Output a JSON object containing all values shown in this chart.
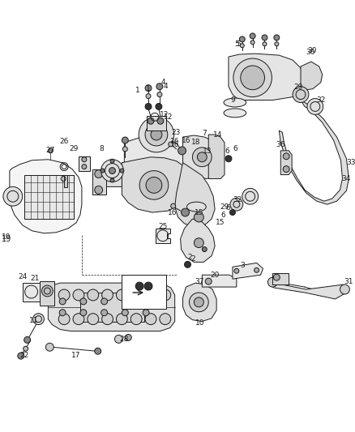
{
  "bg_color": "#ffffff",
  "line_color": "#1a1a1a",
  "figsize": [
    4.38,
    5.33
  ],
  "dpi": 100,
  "lw": 0.7,
  "label_fs": 6.0
}
